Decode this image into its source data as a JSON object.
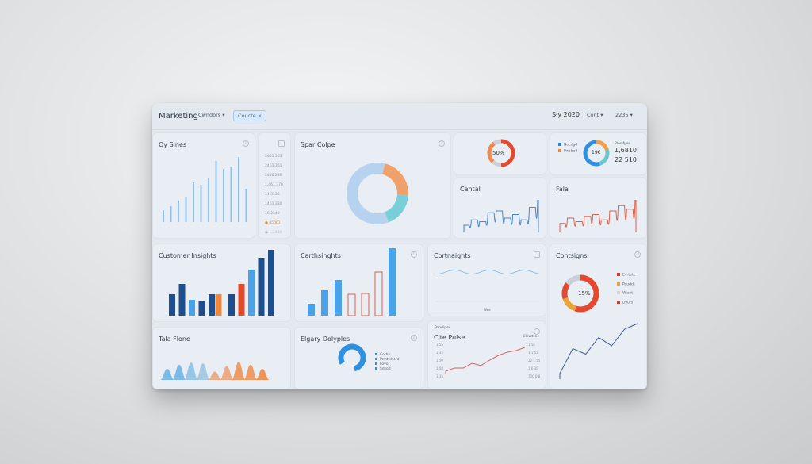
{
  "header": {
    "title": "Marketing",
    "dropdown1": "Cwndors ▾",
    "chip": "Coucte ×",
    "date": "Sły 2020",
    "dropdown2": "Cont ▾",
    "dropdown3": "2235 ▾"
  },
  "panels": {
    "oy_series": {
      "title": "Oy Sines",
      "values": [
        15,
        20,
        27,
        32,
        50,
        47,
        55,
        77,
        67,
        70,
        82,
        42
      ],
      "color": "#8fc0ea"
    },
    "list": {
      "items": [
        "2861 361",
        "2461 361",
        "2446 230",
        "1,461 370",
        "14 3136",
        "1461 330",
        "16 3140",
        "45061",
        "1,3444"
      ],
      "dot_colors": [
        "#e58a3a",
        "#a8b3be"
      ]
    },
    "spar_colpe": {
      "title": "Spar Colpe",
      "slices": [
        {
          "value": 22,
          "color": "#f0a06a"
        },
        {
          "value": 18,
          "color": "#78cfd8"
        },
        {
          "value": 60,
          "color": "#b6d2ee"
        }
      ]
    },
    "donut_50": {
      "label": "50%",
      "slices": [
        {
          "value": 50,
          "color": "#e2492f"
        },
        {
          "value": 12,
          "color": "#c9d0d8"
        },
        {
          "value": 28,
          "color": "#ee8a4f"
        },
        {
          "value": 10,
          "color": "#c9d0d8"
        }
      ]
    },
    "donut_legend": {
      "legend": [
        "Nocdgd",
        "Pwsbad"
      ],
      "legend_colors": [
        "#2f7fd0",
        "#e58a3a"
      ],
      "center": "19€",
      "caption": "Ploxifyes",
      "value1": "1,6810",
      "value2": "22 510"
    },
    "cantal": {
      "title": "Cantal",
      "values": [
        20,
        35,
        30,
        55,
        60,
        40,
        50,
        35,
        70,
        90
      ],
      "color": "#4a86c8"
    },
    "fala": {
      "title": "Fala",
      "values": [
        25,
        40,
        30,
        45,
        50,
        35,
        60,
        75,
        65,
        90
      ],
      "color": "#e0604a"
    },
    "customer_insights": {
      "title": "Customer Insights",
      "values": [
        27,
        40,
        20,
        18,
        27,
        27,
        27,
        40,
        58,
        73,
        83
      ],
      "colors": [
        "#1f4e8c",
        "#1f4e8c",
        "#4aa3e8",
        "#1f4e8c",
        "#1f4e8c",
        "#ee8a3f",
        "#1f4e8c",
        "#e24a2c",
        "#4aa3e8",
        "#1f4e8c",
        "#1f4e8c"
      ]
    },
    "carthsinghts": {
      "title": "Carthsinghts",
      "values": [
        15,
        32,
        45,
        27,
        28,
        55,
        85
      ],
      "outlined": [
        false,
        false,
        false,
        true,
        true,
        true,
        false
      ],
      "color": "#4aa3e8",
      "outline_color": "#e0604a"
    },
    "cortnaights": {
      "title": "Cortnaights",
      "axis_label": "Wee",
      "color": "#7fb8e0"
    },
    "contsigns": {
      "title": "Contsigns",
      "label": "15%",
      "legend": [
        "Evrtetc",
        "Pouddt",
        "Wiant",
        "Dyurs"
      ],
      "legend_colors": [
        "#d63a2a",
        "#e8a33a",
        "#d9d2c2",
        "#d63a2a"
      ],
      "slices": [
        {
          "value": 55,
          "color": "#e2492f"
        },
        {
          "value": 15,
          "color": "#e8a33a"
        },
        {
          "value": 15,
          "color": "#e2492f"
        },
        {
          "value": 15,
          "color": "#c9d0d8"
        }
      ],
      "line": [
        10,
        55,
        45,
        75,
        60,
        90,
        100
      ],
      "line_color": "#3c5b8c"
    },
    "tala_flone": {
      "title": "Tala Flone",
      "peaks": [
        {
          "h": 40,
          "c": "#6fb3e6"
        },
        {
          "h": 55,
          "c": "#6fb3e6"
        },
        {
          "h": 62,
          "c": "#8cc0e6"
        },
        {
          "h": 60,
          "c": "#9ec5e0"
        },
        {
          "h": 30,
          "c": "#e8a580"
        },
        {
          "h": 50,
          "c": "#eca27a"
        },
        {
          "h": 65,
          "c": "#ee9256"
        },
        {
          "h": 55,
          "c": "#ee9256"
        },
        {
          "h": 40,
          "c": "#ee8a4a"
        }
      ]
    },
    "elgary": {
      "title": "Elgary Dolyples",
      "legend": [
        "Cothy",
        "Prmtwhord",
        "Fovor",
        "Sdsod"
      ],
      "color": "#2f8fe0",
      "value": 80
    },
    "cite_pulse": {
      "title": "Cite Pulse",
      "caption": "Pondipes",
      "right_label": "Clewtsee",
      "left_ticks": [
        "1 55",
        "1 35",
        "1 50",
        "1 50",
        "1 35"
      ],
      "right_ticks": [
        "1 5E",
        "1 1 55",
        "22 1 55",
        "1 6 30",
        "730 0 8"
      ],
      "line": [
        10,
        20,
        20,
        35,
        28,
        45,
        60,
        70,
        75,
        85
      ],
      "color": "#d9606a"
    }
  }
}
